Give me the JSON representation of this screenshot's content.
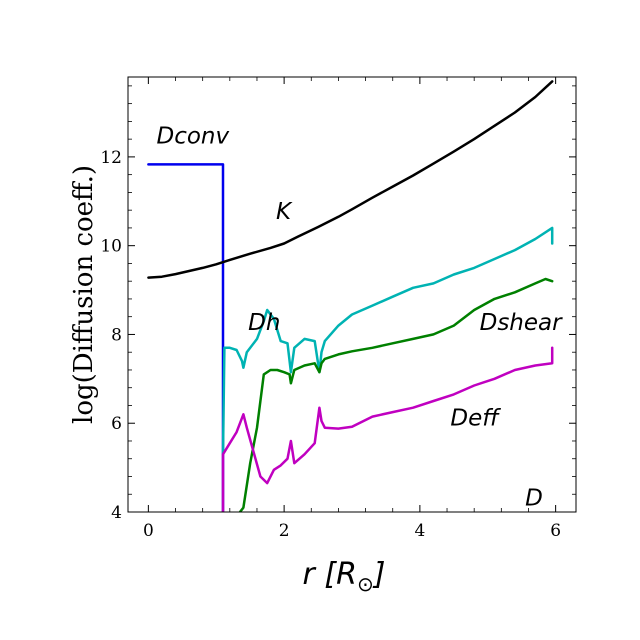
{
  "chart_data": {
    "type": "line",
    "title": "",
    "xlabel": "r [R_⊙]",
    "ylabel": "log(Diffusion coeff.)",
    "xlim": [
      -0.3,
      6.3
    ],
    "ylim": [
      4,
      13.8
    ],
    "xticks": [
      0,
      2,
      4,
      6
    ],
    "yticks": [
      4,
      6,
      8,
      10,
      12
    ],
    "grid": false,
    "annotations": [
      {
        "text": "Dconv",
        "x": 0.12,
        "y": 12.3
      },
      {
        "text": "K",
        "x": 1.88,
        "y": 10.6
      },
      {
        "text": "Dh",
        "x": 1.47,
        "y": 8.1
      },
      {
        "text": "Dshear",
        "x": 4.88,
        "y": 8.1
      },
      {
        "text": "Deff",
        "x": 4.45,
        "y": 5.95
      },
      {
        "text": "D",
        "x": 5.55,
        "y": 4.15
      }
    ],
    "series": [
      {
        "name": "Dconv",
        "color": "#0000ee",
        "x": [
          0,
          0.2,
          0.4,
          0.6,
          0.8,
          1.0,
          1.1,
          1.1,
          1.1
        ],
        "y": [
          11.83,
          11.83,
          11.83,
          11.83,
          11.83,
          11.83,
          11.83,
          7.9,
          4.0
        ]
      },
      {
        "name": "K",
        "color": "#000000",
        "x": [
          0,
          0.2,
          0.4,
          0.6,
          0.8,
          1.0,
          1.2,
          1.5,
          1.8,
          2.0,
          2.2,
          2.5,
          2.8,
          3.0,
          3.3,
          3.6,
          3.9,
          4.2,
          4.5,
          4.8,
          5.1,
          5.4,
          5.7,
          5.95
        ],
        "y": [
          9.28,
          9.3,
          9.36,
          9.43,
          9.5,
          9.58,
          9.68,
          9.82,
          9.95,
          10.05,
          10.2,
          10.42,
          10.65,
          10.82,
          11.08,
          11.33,
          11.58,
          11.85,
          12.12,
          12.4,
          12.7,
          13.0,
          13.35,
          13.7
        ]
      },
      {
        "name": "Dh",
        "color": "#00b3b3",
        "x": [
          1.1,
          1.12,
          1.2,
          1.3,
          1.38,
          1.4,
          1.45,
          1.6,
          1.7,
          1.75,
          1.85,
          1.95,
          2.05,
          2.1,
          2.15,
          2.3,
          2.45,
          2.52,
          2.55,
          2.6,
          2.8,
          3.0,
          3.3,
          3.6,
          3.9,
          4.2,
          4.5,
          4.8,
          5.1,
          5.4,
          5.7,
          5.95,
          5.95
        ],
        "y": [
          5.3,
          7.7,
          7.7,
          7.65,
          7.4,
          7.25,
          7.6,
          7.9,
          8.3,
          8.55,
          8.35,
          7.85,
          7.8,
          7.15,
          7.7,
          7.9,
          7.85,
          7.15,
          7.6,
          7.85,
          8.2,
          8.45,
          8.65,
          8.85,
          9.05,
          9.15,
          9.35,
          9.5,
          9.7,
          9.9,
          10.15,
          10.4,
          10.05
        ]
      },
      {
        "name": "Dshear",
        "color": "#008000",
        "x": [
          1.35,
          1.4,
          1.5,
          1.6,
          1.7,
          1.8,
          1.9,
          2.0,
          2.08,
          2.1,
          2.15,
          2.3,
          2.45,
          2.52,
          2.55,
          2.6,
          2.8,
          3.0,
          3.3,
          3.6,
          3.9,
          4.2,
          4.5,
          4.8,
          5.1,
          5.4,
          5.7,
          5.85,
          5.95
        ],
        "y": [
          4.0,
          4.1,
          5.1,
          5.9,
          7.1,
          7.2,
          7.2,
          7.15,
          7.1,
          6.9,
          7.2,
          7.3,
          7.35,
          7.15,
          7.35,
          7.45,
          7.55,
          7.62,
          7.7,
          7.8,
          7.9,
          8.0,
          8.2,
          8.55,
          8.8,
          8.95,
          9.15,
          9.25,
          9.2
        ]
      },
      {
        "name": "Deff",
        "color": "#c000c0",
        "x": [
          1.1,
          1.1,
          1.2,
          1.3,
          1.4,
          1.45,
          1.55,
          1.65,
          1.75,
          1.85,
          1.95,
          2.05,
          2.1,
          2.15,
          2.3,
          2.45,
          2.52,
          2.55,
          2.6,
          2.8,
          3.0,
          3.3,
          3.6,
          3.9,
          4.2,
          4.5,
          4.8,
          5.1,
          5.4,
          5.7,
          5.95,
          5.95
        ],
        "y": [
          4.0,
          5.3,
          5.55,
          5.8,
          6.2,
          5.9,
          5.35,
          4.8,
          4.65,
          4.95,
          5.05,
          5.2,
          5.6,
          5.1,
          5.3,
          5.55,
          6.35,
          6.05,
          5.9,
          5.88,
          5.92,
          6.15,
          6.25,
          6.35,
          6.5,
          6.65,
          6.85,
          7.0,
          7.2,
          7.3,
          7.35,
          7.7
        ]
      }
    ]
  }
}
